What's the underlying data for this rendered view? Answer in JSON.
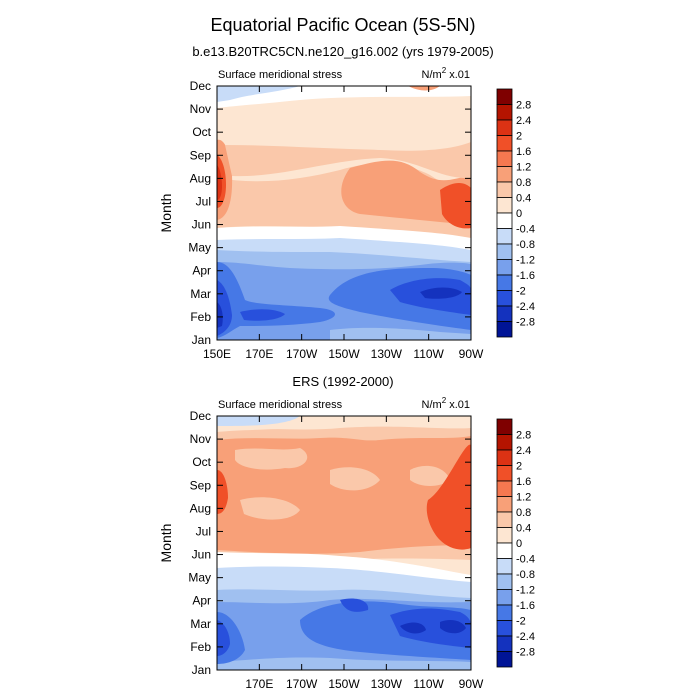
{
  "title": "Equatorial Pacific Ocean (5S-5N)",
  "colorbar": {
    "labels": [
      "2.8",
      "2.4",
      "2",
      "1.6",
      "1.2",
      "0.8",
      "0.4",
      "0",
      "-0.4",
      "-0.8",
      "-1.2",
      "-1.6",
      "-2",
      "-2.4",
      "-2.8"
    ],
    "colors": [
      "#7f0000",
      "#b41400",
      "#dc3214",
      "#f05028",
      "#f57850",
      "#f8a078",
      "#fac8aa",
      "#fde6d2",
      "#ffffff",
      "#c8dcf8",
      "#a0c0f0",
      "#78a0ec",
      "#4678e6",
      "#2850dc",
      "#1432be",
      "#001496"
    ]
  },
  "chart_data": [
    {
      "type": "heatmap",
      "title": "b.e13.B20TRC5CN.ne120_g16.002 (yrs 1979-2005)",
      "left_label": "Surface meridional stress",
      "right_label_prefix": "N/m",
      "right_label_exp": "2",
      "right_label_suffix": " x.01",
      "ylabel": "Month",
      "y_ticks": [
        "Jan",
        "Feb",
        "Mar",
        "Apr",
        "May",
        "Jun",
        "Jul",
        "Aug",
        "Sep",
        "Oct",
        "Nov",
        "Dec"
      ],
      "x_ticks": [
        "150E",
        "170E",
        "170W",
        "150W",
        "130W",
        "110W",
        "90W"
      ],
      "x_range_deg_east": [
        150,
        270
      ],
      "y_range_month": [
        1,
        12
      ]
    },
    {
      "type": "heatmap",
      "title": "ERS (1992-2000)",
      "left_label": "Surface meridional stress",
      "right_label_prefix": "N/m",
      "right_label_exp": "2",
      "right_label_suffix": " x.01",
      "ylabel": "Month",
      "y_ticks": [
        "Jan",
        "Feb",
        "Mar",
        "Apr",
        "May",
        "Jun",
        "Jul",
        "Aug",
        "Sep",
        "Oct",
        "Nov",
        "Dec"
      ],
      "x_ticks": [
        "",
        "170E",
        "170W",
        "150W",
        "130W",
        "110W",
        "90W"
      ],
      "x_range_deg_east": [
        150,
        270
      ],
      "y_range_month": [
        1,
        12
      ]
    }
  ]
}
